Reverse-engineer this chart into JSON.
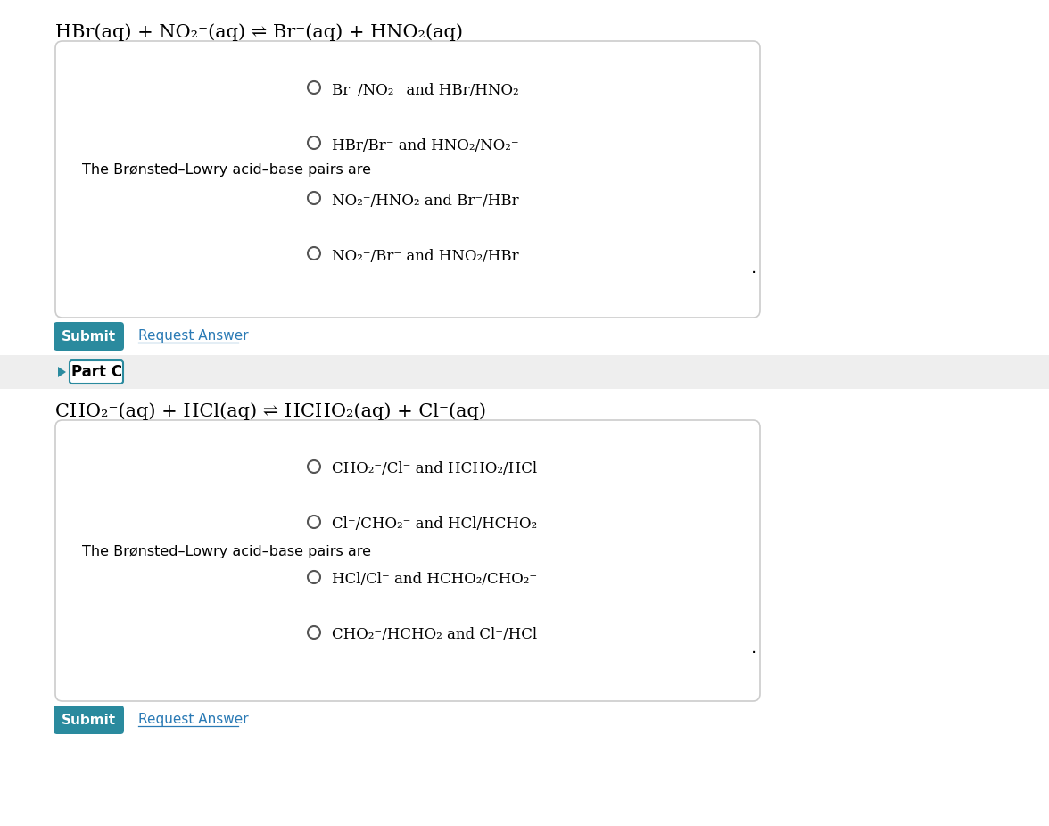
{
  "bg_color": "#ffffff",
  "eq1": "HBr(aq) + NO₂⁻(aq) ⇌ Br⁻(aq) + HNO₂(aq)",
  "label1": "The Brønsted–Lowry acid–base pairs are",
  "options1": [
    "Br⁻/NO₂⁻ and HBr/HNO₂",
    "HBr/Br⁻ and HNO₂/NO₂⁻",
    "NO₂⁻/HNO₂ and Br⁻/HBr",
    "NO₂⁻/Br⁻ and HNO₂/HBr"
  ],
  "part_c_label": "Part C",
  "eq2": "CHO₂⁻(aq) + HCl(aq) ⇌ HCHO₂(aq) + Cl⁻(aq)",
  "label2": "The Brønsted–Lowry acid–base pairs are",
  "options2": [
    "CHO₂⁻/Cl⁻ and HCHO₂/HCl",
    "Cl⁻/CHO₂⁻ and HCl/HCHO₂",
    "HCl/Cl⁻ and HCHO₂/CHO₂⁻",
    "CHO₂⁻/HCHO₂ and Cl⁻/HCl"
  ],
  "submit_color": "#2a8a9e",
  "submit_text_color": "#ffffff",
  "link_color": "#2a7ab5",
  "part_c_border": "#2a8a9e",
  "box_border": "#cccccc",
  "text_color": "#000000"
}
